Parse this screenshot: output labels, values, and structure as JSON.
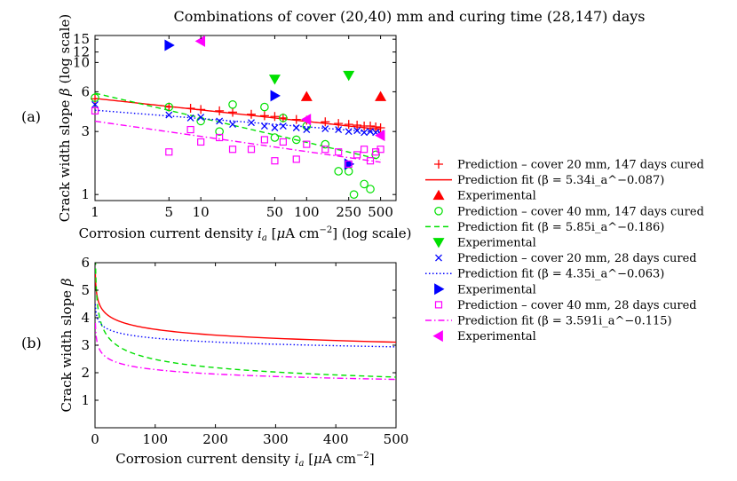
{
  "figure_title": "Combinations of cover (20,40) mm and curing time (28,147) days",
  "panel_labels": [
    "(a)",
    "(b)"
  ],
  "colors": {
    "red": "#ff0000",
    "green": "#00e000",
    "blue": "#0000ff",
    "magenta": "#ff00ff"
  },
  "legend": [
    {
      "label": "Prediction – cover 20 mm, 147 days cured",
      "kind": "plus",
      "color": "red"
    },
    {
      "label": "Prediction fit (β = 5.34i_a^−0.087)",
      "kind": "solid",
      "color": "red"
    },
    {
      "label": "Experimental",
      "kind": "tri-up",
      "color": "red"
    },
    {
      "label": "Prediction – cover 40 mm, 147 days cured",
      "kind": "circle",
      "color": "green"
    },
    {
      "label": "Prediction fit (β = 5.85i_a^−0.186)",
      "kind": "dashed",
      "color": "green"
    },
    {
      "label": "Experimental",
      "kind": "tri-down",
      "color": "green"
    },
    {
      "label": "Prediction – cover 20 mm, 28 days cured",
      "kind": "cross",
      "color": "blue"
    },
    {
      "label": "Prediction fit (β = 4.35i_a^−0.063)",
      "kind": "dotted",
      "color": "blue"
    },
    {
      "label": "Experimental",
      "kind": "tri-right",
      "color": "blue"
    },
    {
      "label": "Prediction – cover 40 mm, 28 days cured",
      "kind": "square",
      "color": "magenta"
    },
    {
      "label": "Prediction fit (β = 3.591i_a^−0.115)",
      "kind": "dashdot",
      "color": "magenta"
    },
    {
      "label": "Experimental",
      "kind": "tri-left",
      "color": "magenta"
    }
  ],
  "chart_data": [
    {
      "id": "a",
      "type": "scatter",
      "xlabel": "Corrosion current density i_a [μA cm⁻²] (log scale)",
      "ylabel": "Crack width slope β (log scale)",
      "xscale": "log",
      "yscale": "log",
      "xlim": [
        1,
        700
      ],
      "ylim": [
        0.9,
        16
      ],
      "xticks": [
        1,
        5,
        10,
        50,
        100,
        250,
        500
      ],
      "xtick_labels": [
        "1",
        "5",
        "10",
        "50",
        "100",
        "250",
        "500"
      ],
      "yticks": [
        1,
        3,
        6,
        10,
        12,
        15
      ],
      "ytick_labels": [
        "1",
        "3",
        "6",
        "10",
        "12",
        "15"
      ],
      "series": [
        {
          "name": "Prediction – cover 20 mm, 147 days cured",
          "marker": "plus",
          "color": "red",
          "x": [
            1,
            5,
            8,
            10,
            15,
            20,
            30,
            40,
            50,
            60,
            80,
            100,
            150,
            200,
            250,
            300,
            350,
            400,
            450,
            500
          ],
          "y": [
            5.3,
            4.6,
            4.5,
            4.4,
            4.3,
            4.2,
            4.05,
            3.95,
            3.9,
            3.8,
            3.7,
            3.65,
            3.55,
            3.45,
            3.4,
            3.35,
            3.3,
            3.3,
            3.25,
            3.2
          ]
        },
        {
          "name": "Prediction fit (β = 5.34i_a^−0.087)",
          "line": "solid",
          "color": "red",
          "fit": {
            "a": 5.34,
            "b": -0.087
          }
        },
        {
          "name": "Experimental",
          "marker": "tri-up",
          "color": "red",
          "x": [
            100,
            500
          ],
          "y": [
            5.5,
            5.5
          ]
        },
        {
          "name": "Prediction – cover 40 mm, 147 days cured",
          "marker": "circle",
          "color": "green",
          "x": [
            1,
            5,
            10,
            15,
            20,
            40,
            50,
            60,
            80,
            100,
            150,
            200,
            250,
            280,
            350,
            400,
            450
          ],
          "y": [
            5.4,
            4.6,
            3.6,
            3.0,
            4.8,
            4.6,
            2.7,
            3.8,
            2.6,
            3.3,
            2.4,
            1.5,
            1.5,
            1.0,
            1.2,
            1.1,
            2.0
          ]
        },
        {
          "name": "Prediction fit (β = 5.85i_a^−0.186)",
          "line": "dashed",
          "color": "green",
          "fit": {
            "a": 5.85,
            "b": -0.186
          }
        },
        {
          "name": "Experimental",
          "marker": "tri-down",
          "color": "green",
          "x": [
            50,
            250
          ],
          "y": [
            7.5,
            8.0
          ]
        },
        {
          "name": "Prediction – cover 20 mm, 28 days cured",
          "marker": "cross",
          "color": "blue",
          "x": [
            1,
            5,
            8,
            10,
            15,
            20,
            30,
            40,
            50,
            60,
            80,
            100,
            150,
            200,
            250,
            300,
            350,
            400,
            450,
            500
          ],
          "y": [
            4.8,
            4.0,
            3.8,
            3.85,
            3.6,
            3.4,
            3.5,
            3.3,
            3.2,
            3.3,
            3.2,
            3.1,
            3.15,
            3.1,
            3.0,
            3.05,
            2.95,
            3.0,
            2.95,
            2.9
          ]
        },
        {
          "name": "Prediction fit (β = 4.35i_a^−0.063)",
          "line": "dotted",
          "color": "blue",
          "fit": {
            "a": 4.35,
            "b": -0.063
          }
        },
        {
          "name": "Experimental",
          "marker": "tri-right",
          "color": "blue",
          "x": [
            5,
            50,
            250
          ],
          "y": [
            13.5,
            5.6,
            1.7
          ]
        },
        {
          "name": "Prediction – cover 40 mm, 28 days cured",
          "marker": "square",
          "color": "magenta",
          "x": [
            1,
            5,
            8,
            10,
            15,
            20,
            30,
            40,
            50,
            60,
            80,
            100,
            150,
            200,
            250,
            300,
            350,
            400,
            450,
            500
          ],
          "y": [
            4.3,
            2.1,
            3.1,
            2.5,
            2.7,
            2.2,
            2.2,
            2.6,
            1.8,
            2.5,
            1.85,
            2.4,
            2.2,
            2.1,
            1.7,
            2.0,
            2.2,
            1.8,
            2.1,
            2.2
          ]
        },
        {
          "name": "Prediction fit (β = 3.591i_a^−0.115)",
          "line": "dashdot",
          "color": "magenta",
          "fit": {
            "a": 3.591,
            "b": -0.115
          }
        },
        {
          "name": "Experimental",
          "marker": "tri-left",
          "color": "magenta",
          "x": [
            10,
            100,
            500
          ],
          "y": [
            14.5,
            3.7,
            2.8
          ]
        }
      ]
    },
    {
      "id": "b",
      "type": "line",
      "xlabel": "Corrosion current density i_a [μA cm⁻²]",
      "ylabel": "Crack width slope β",
      "xscale": "linear",
      "yscale": "linear",
      "xlim": [
        0,
        500
      ],
      "ylim": [
        0,
        6
      ],
      "xticks": [
        0,
        100,
        200,
        300,
        400,
        500
      ],
      "xtick_labels": [
        "0",
        "100",
        "200",
        "300",
        "400",
        "500"
      ],
      "yticks": [
        1,
        2,
        3,
        4,
        5,
        6
      ],
      "ytick_labels": [
        "1",
        "2",
        "3",
        "4",
        "5",
        "6"
      ],
      "series": [
        {
          "name": "cover 20 mm, 147 days",
          "line": "solid",
          "color": "red",
          "fit": {
            "a": 5.34,
            "b": -0.087
          }
        },
        {
          "name": "cover 40 mm, 147 days",
          "line": "dashed",
          "color": "green",
          "fit": {
            "a": 5.85,
            "b": -0.186
          }
        },
        {
          "name": "cover 20 mm, 28 days",
          "line": "dotted",
          "color": "blue",
          "fit": {
            "a": 4.35,
            "b": -0.063
          }
        },
        {
          "name": "cover 40 mm, 28 days",
          "line": "dashdot",
          "color": "magenta",
          "fit": {
            "a": 3.591,
            "b": -0.115
          }
        }
      ]
    }
  ]
}
